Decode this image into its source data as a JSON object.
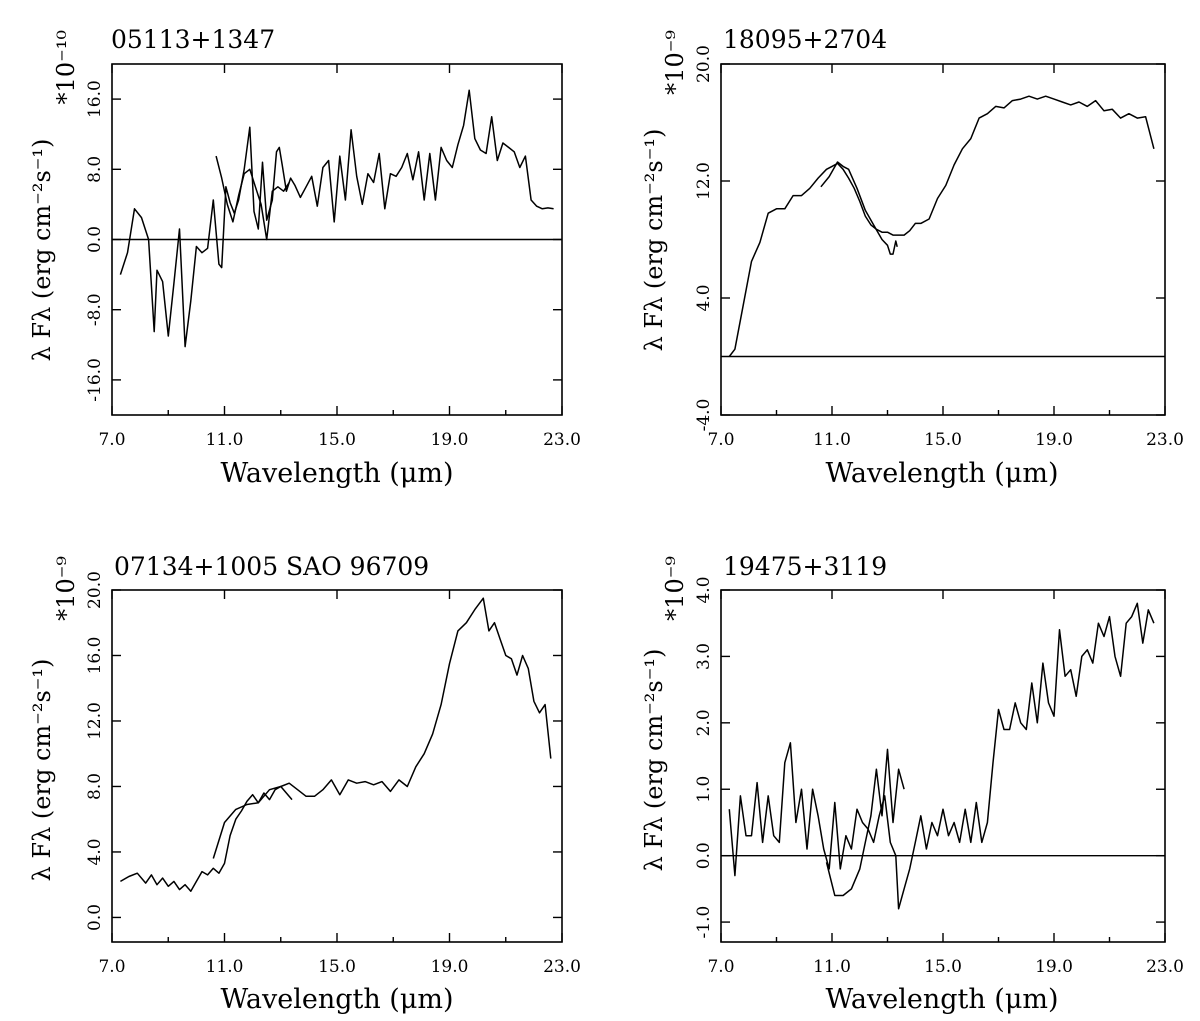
{
  "chart_data": [
    {
      "type": "line",
      "title": "05113+1347",
      "xlabel": "Wavelength (μm)",
      "ylabel": "λ Fλ (erg cm⁻²s⁻¹)",
      "scale": "*10⁻¹⁰",
      "xlim": [
        7.0,
        23.0
      ],
      "ylim": [
        -20.0,
        20.0
      ],
      "xticks": [
        "7.0",
        "11.0",
        "15.0",
        "19.0",
        "23.0"
      ],
      "yticks": [
        "-16.0",
        "-8.0",
        "0.0",
        "8.0",
        "16.0"
      ],
      "ytick_values": [
        -16,
        -8,
        0,
        8,
        16
      ],
      "zero_line": 0,
      "series": [
        {
          "x": [
            7.3,
            7.55,
            7.8,
            8.05,
            8.3,
            8.5,
            8.6,
            8.8,
            9.0,
            9.2,
            9.4,
            9.6,
            9.8,
            10.0,
            10.2,
            10.4,
            10.6,
            10.8,
            10.9,
            11.05,
            11.2,
            11.35,
            11.5,
            11.7,
            11.9,
            12.05,
            12.2,
            12.35,
            12.5,
            12.7,
            12.85,
            12.95,
            13.05,
            13.2,
            13.35,
            13.5,
            13.7,
            13.9,
            14.1,
            14.3,
            14.5,
            14.7,
            14.9,
            15.1,
            15.3,
            15.5,
            15.7,
            15.9,
            16.1,
            16.3,
            16.5,
            16.7,
            16.9,
            17.1,
            17.3,
            17.5,
            17.7,
            17.9,
            18.1,
            18.3,
            18.5,
            18.7,
            18.9,
            19.1,
            19.3,
            19.5,
            19.7,
            19.9,
            20.1,
            20.3,
            20.5,
            20.7,
            20.9,
            21.1,
            21.3,
            21.5,
            21.7,
            21.9,
            22.1,
            22.3,
            22.5,
            22.7
          ],
          "y": [
            -4,
            -1.5,
            3.5,
            2.5,
            0,
            -10.5,
            -3.5,
            -4.8,
            -11,
            -5,
            1.2,
            -12.2,
            -7,
            -0.8,
            -1.5,
            -1,
            4.5,
            -2.8,
            -3.2,
            6,
            4.2,
            3,
            4.5,
            8,
            12.8,
            3.2,
            1.2,
            8.8,
            2.2,
            4.5,
            10,
            10.5,
            8.5,
            5.5,
            7,
            6.2,
            4.8,
            6,
            7.2,
            3.8,
            8.2,
            9,
            2,
            9.5,
            4.5,
            12.5,
            7.2,
            4,
            7.5,
            6.5,
            9.8,
            3.5,
            7.5,
            7.2,
            8.2,
            9.8,
            6.8,
            10,
            4.5,
            9.8,
            4.5,
            10.5,
            9,
            8.2,
            10.8,
            13,
            17,
            11.5,
            10.2,
            9.8,
            14,
            9,
            11,
            10.5,
            10,
            8.2,
            9.5,
            4.5,
            3.8,
            3.5,
            3.6,
            3.5
          ]
        },
        {
          "x": [
            10.7,
            10.9,
            11.1,
            11.3,
            11.5,
            11.7,
            11.9,
            12.1,
            12.3,
            12.4,
            12.5,
            12.7,
            12.9,
            13.1,
            13.3
          ],
          "y": [
            9.5,
            7,
            4,
            2,
            5,
            7.5,
            8,
            6,
            4,
            2,
            0,
            5.5,
            6,
            5.5,
            6.5
          ]
        }
      ]
    },
    {
      "type": "line",
      "title": "18095+2704",
      "xlabel": "Wavelength (μm)",
      "ylabel": "λ Fλ (erg cm⁻²s⁻¹)",
      "scale": "*10⁻⁹",
      "xlim": [
        7.0,
        23.0
      ],
      "ylim": [
        -4.0,
        20.0
      ],
      "xticks": [
        "7.0",
        "11.0",
        "15.0",
        "19.0",
        "23.0"
      ],
      "yticks": [
        "-4.0",
        "4.0",
        "12.0",
        "20.0"
      ],
      "ytick_values": [
        -4,
        4,
        12,
        20
      ],
      "zero_line": 0,
      "series": [
        {
          "x": [
            7.3,
            7.5,
            7.8,
            8.1,
            8.4,
            8.7,
            9.0,
            9.3,
            9.6,
            9.9,
            10.2,
            10.5,
            10.8,
            11.0,
            11.2,
            11.4,
            11.6,
            11.8,
            12.0,
            12.2,
            12.4,
            12.6,
            12.8,
            13.0,
            13.2,
            13.4,
            13.6,
            13.8,
            14.0,
            14.2,
            14.5,
            14.8,
            15.1,
            15.4,
            15.7,
            16.0,
            16.3,
            16.6,
            16.9,
            17.2,
            17.5,
            17.8,
            18.1,
            18.4,
            18.7,
            19.0,
            19.3,
            19.6,
            19.9,
            20.2,
            20.5,
            20.8,
            21.1,
            21.4,
            21.7,
            22.0,
            22.3,
            22.6
          ],
          "y": [
            0,
            0.5,
            3.5,
            6.5,
            7.8,
            9.8,
            10.1,
            10.1,
            11,
            11,
            11.5,
            12.2,
            12.8,
            13,
            13.2,
            12.8,
            12.2,
            11.5,
            10.6,
            9.6,
            9,
            8.7,
            8.5,
            8.5,
            8.3,
            8.3,
            8.3,
            8.6,
            9.1,
            9.1,
            9.4,
            10.8,
            11.7,
            13.1,
            14.2,
            14.9,
            16.3,
            16.6,
            17.1,
            17,
            17.5,
            17.6,
            17.8,
            17.6,
            17.8,
            17.6,
            17.4,
            17.2,
            17.4,
            17.1,
            17.5,
            16.8,
            16.9,
            16.3,
            16.6,
            16.3,
            16.4,
            14.2
          ]
        },
        {
          "x": [
            10.6,
            10.9,
            11.2,
            11.4,
            11.6,
            11.9,
            12.2,
            12.5,
            12.8,
            13.0,
            13.1,
            13.2,
            13.3,
            13.35
          ],
          "y": [
            11.6,
            12.3,
            13.3,
            13.0,
            12.8,
            11.5,
            10.0,
            9.0,
            8.0,
            7.6,
            7.0,
            7.0,
            7.9,
            7.5
          ]
        }
      ]
    },
    {
      "type": "line",
      "title": "07134+1005   SAO 96709",
      "xlabel": "Wavelength (μm)",
      "ylabel": "λ Fλ (erg cm⁻²s⁻¹)",
      "scale": "*10⁻⁹",
      "xlim": [
        7.0,
        23.0
      ],
      "ylim": [
        -1.5,
        20.0
      ],
      "xticks": [
        "7.0",
        "11.0",
        "15.0",
        "19.0",
        "23.0"
      ],
      "yticks": [
        "0.0",
        "4.0",
        "8.0",
        "12.0",
        "16.0",
        "20.0"
      ],
      "ytick_values": [
        0,
        4,
        8,
        12,
        16,
        20
      ],
      "zero_line": null,
      "series": [
        {
          "x": [
            7.3,
            7.6,
            7.9,
            8.2,
            8.4,
            8.6,
            8.8,
            9.0,
            9.2,
            9.4,
            9.6,
            9.8,
            10.0,
            10.2,
            10.4,
            10.6,
            10.8,
            11.0,
            11.2,
            11.4,
            11.6,
            11.8,
            12.0,
            12.2,
            12.4,
            12.6,
            12.8,
            13.0,
            13.3,
            13.6,
            13.9,
            14.2,
            14.5,
            14.8,
            15.1,
            15.4,
            15.7,
            16.0,
            16.3,
            16.6,
            16.9,
            17.2,
            17.5,
            17.8,
            18.1,
            18.4,
            18.7,
            19.0,
            19.3,
            19.6,
            19.9,
            20.2,
            20.4,
            20.6,
            20.8,
            21.0,
            21.2,
            21.4,
            21.6,
            21.8,
            22.0,
            22.2,
            22.4,
            22.6
          ],
          "y": [
            2.2,
            2.5,
            2.7,
            2.1,
            2.6,
            2.0,
            2.4,
            1.9,
            2.2,
            1.7,
            2.0,
            1.6,
            2.2,
            2.8,
            2.6,
            3.0,
            2.7,
            3.3,
            5.0,
            6.0,
            6.5,
            7.1,
            7.5,
            7.0,
            7.6,
            7.2,
            7.8,
            8.0,
            8.2,
            7.8,
            7.4,
            7.4,
            7.8,
            8.4,
            7.5,
            8.4,
            8.2,
            8.3,
            8.1,
            8.3,
            7.7,
            8.4,
            8.0,
            9.2,
            10.0,
            11.2,
            13.0,
            15.5,
            17.5,
            18.0,
            18.8,
            19.5,
            17.5,
            18.0,
            17.0,
            16.0,
            15.8,
            14.8,
            16.0,
            15.2,
            13.2,
            12.5,
            13.0,
            9.7
          ]
        },
        {
          "x": [
            10.6,
            11.0,
            11.4,
            11.8,
            12.2,
            12.6,
            13.0,
            13.4
          ],
          "y": [
            3.6,
            5.8,
            6.6,
            6.9,
            7.0,
            7.8,
            8.0,
            7.2
          ]
        }
      ]
    },
    {
      "type": "line",
      "title": "19475+3119",
      "xlabel": "Wavelength (μm)",
      "ylabel": "λ Fλ (erg cm⁻²s⁻¹)",
      "scale": "*10⁻⁹",
      "xlim": [
        7.0,
        23.0
      ],
      "ylim": [
        -1.3,
        4.0
      ],
      "xticks": [
        "7.0",
        "11.0",
        "15.0",
        "19.0",
        "23.0"
      ],
      "yticks": [
        "-1.0",
        "0.0",
        "1.0",
        "2.0",
        "3.0",
        "4.0"
      ],
      "ytick_values": [
        -1,
        0,
        1,
        2,
        3,
        4
      ],
      "zero_line": 0,
      "series": [
        {
          "x": [
            7.3,
            7.5,
            7.7,
            7.9,
            8.1,
            8.3,
            8.5,
            8.7,
            8.9,
            9.1,
            9.3,
            9.5,
            9.7,
            9.9,
            10.1,
            10.3,
            10.5,
            10.7,
            10.9,
            11.1,
            11.3,
            11.5,
            11.7,
            11.9,
            12.1,
            12.3,
            12.5,
            12.7,
            12.9,
            13.1,
            13.3,
            13.4,
            13.6,
            13.8,
            14.0,
            14.2,
            14.4,
            14.6,
            14.8,
            15.0,
            15.2,
            15.4,
            15.6,
            15.8,
            16.0,
            16.2,
            16.4,
            16.6,
            16.8,
            17.0,
            17.2,
            17.4,
            17.6,
            17.8,
            18.0,
            18.2,
            18.4,
            18.6,
            18.8,
            19.0,
            19.2,
            19.4,
            19.6,
            19.8,
            20.0,
            20.2,
            20.4,
            20.6,
            20.8,
            21.0,
            21.2,
            21.4,
            21.6,
            21.8,
            22.0,
            22.2,
            22.4,
            22.6
          ],
          "y": [
            0.7,
            -0.3,
            0.9,
            0.3,
            0.3,
            1.1,
            0.2,
            0.9,
            0.3,
            0.2,
            1.4,
            1.7,
            0.5,
            1.0,
            0.1,
            1.0,
            0.6,
            0.1,
            -0.2,
            0.8,
            -0.2,
            0.3,
            0.1,
            0.7,
            0.5,
            0.4,
            0.2,
            0.6,
            0.9,
            0.2,
            0.0,
            -0.8,
            -0.5,
            -0.2,
            0.2,
            0.6,
            0.1,
            0.5,
            0.3,
            0.7,
            0.3,
            0.5,
            0.2,
            0.7,
            0.2,
            0.8,
            0.2,
            0.5,
            1.4,
            2.2,
            1.9,
            1.9,
            2.3,
            2.0,
            1.9,
            2.6,
            2.0,
            2.9,
            2.3,
            2.1,
            3.4,
            2.7,
            2.8,
            2.4,
            3.0,
            3.1,
            2.9,
            3.5,
            3.3,
            3.6,
            3.0,
            2.7,
            3.5,
            3.6,
            3.8,
            3.2,
            3.7,
            3.5
          ]
        },
        {
          "x": [
            10.8,
            11.1,
            11.4,
            11.7,
            12.0,
            12.2,
            12.4,
            12.6,
            12.8,
            13.0,
            13.2,
            13.4,
            13.6
          ],
          "y": [
            -0.1,
            -0.6,
            -0.6,
            -0.5,
            -0.2,
            0.2,
            0.6,
            1.3,
            0.6,
            1.6,
            0.5,
            1.3,
            1.0
          ]
        }
      ]
    }
  ]
}
